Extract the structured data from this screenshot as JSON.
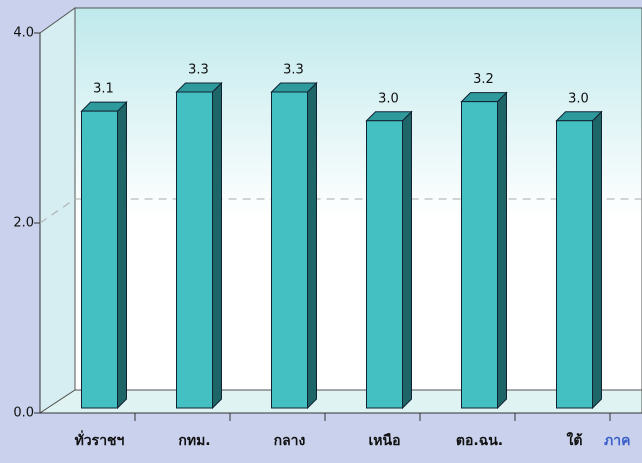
{
  "chart_data": {
    "type": "bar",
    "x_label": "ภาค",
    "categories": [
      "ทั่วราชฯ",
      "กทม.",
      "กลาง",
      "เหนือ",
      "ตอ.ฉน.",
      "ใต้"
    ],
    "values": [
      3.1,
      3.3,
      3.3,
      3.0,
      3.2,
      3.0
    ],
    "value_labels": [
      "3.1",
      "3.3",
      "3.3",
      "3.0",
      "3.2",
      "3.0"
    ],
    "color": "#45c0c2",
    "ylim": [
      0,
      4
    ],
    "yticks": [
      {
        "value": 0,
        "label": "0.0"
      },
      {
        "value": 2,
        "label": "2.0"
      },
      {
        "value": 4,
        "label": "4.0"
      }
    ],
    "grid": true
  }
}
